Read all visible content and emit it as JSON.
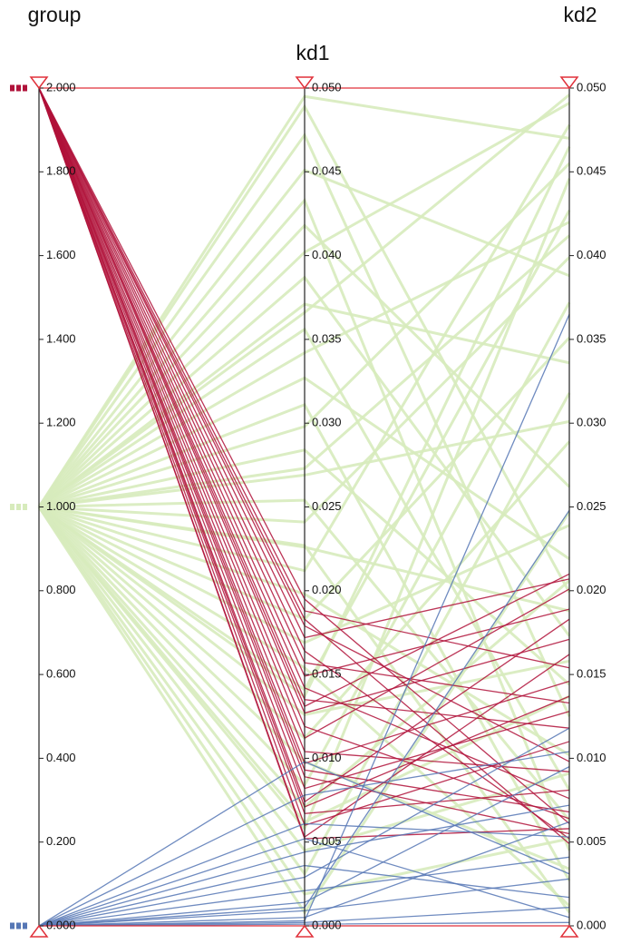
{
  "chart_data": {
    "type": "parallel",
    "axes": [
      {
        "name": "group",
        "lim": [
          0,
          2
        ],
        "ticks": [
          {
            "value": 0,
            "label": "0.000"
          },
          {
            "value": 0.2,
            "label": "0.200"
          },
          {
            "value": 0.4,
            "label": "0.400"
          },
          {
            "value": 0.6,
            "label": "0.600"
          },
          {
            "value": 0.8,
            "label": "0.800"
          },
          {
            "value": 1,
            "label": "1.000"
          },
          {
            "value": 1.2,
            "label": "1.200"
          },
          {
            "value": 1.4,
            "label": "1.400"
          },
          {
            "value": 1.6,
            "label": "1.600"
          },
          {
            "value": 1.8,
            "label": "1.800"
          },
          {
            "value": 2,
            "label": "2.000"
          }
        ]
      },
      {
        "name": "kd1",
        "lim": [
          0,
          0.05
        ],
        "ticks": [
          {
            "value": 0,
            "label": "0.000"
          },
          {
            "value": 0.005,
            "label": "0.005"
          },
          {
            "value": 0.01,
            "label": "0.010"
          },
          {
            "value": 0.015,
            "label": "0.015"
          },
          {
            "value": 0.02,
            "label": "0.020"
          },
          {
            "value": 0.025,
            "label": "0.025"
          },
          {
            "value": 0.03,
            "label": "0.030"
          },
          {
            "value": 0.035,
            "label": "0.035"
          },
          {
            "value": 0.04,
            "label": "0.040"
          },
          {
            "value": 0.045,
            "label": "0.045"
          },
          {
            "value": 0.05,
            "label": "0.050"
          }
        ]
      },
      {
        "name": "kd2",
        "lim": [
          0,
          0.05
        ],
        "ticks": [
          {
            "value": 0,
            "label": "0.000"
          },
          {
            "value": 0.005,
            "label": "0.005"
          },
          {
            "value": 0.01,
            "label": "0.010"
          },
          {
            "value": 0.015,
            "label": "0.015"
          },
          {
            "value": 0.02,
            "label": "0.020"
          },
          {
            "value": 0.025,
            "label": "0.025"
          },
          {
            "value": 0.03,
            "label": "0.030"
          },
          {
            "value": 0.035,
            "label": "0.035"
          },
          {
            "value": 0.04,
            "label": "0.040"
          },
          {
            "value": 0.045,
            "label": "0.045"
          },
          {
            "value": 0.05,
            "label": "0.050"
          }
        ]
      }
    ],
    "series": [
      {
        "color": "#d7ebbc",
        "values": [
          [
            1,
            0.0495,
            0.047
          ],
          [
            1,
            0.0472,
            0.0125
          ],
          [
            1,
            0.0451,
            0.0388
          ],
          [
            1,
            0.0433,
            0.0045
          ],
          [
            1,
            0.0418,
            0.0262
          ],
          [
            1,
            0.0402,
            0.0491
          ],
          [
            1,
            0.0387,
            0.0173
          ],
          [
            1,
            0.0371,
            0.0336
          ],
          [
            1,
            0.0356,
            0.0081
          ],
          [
            1,
            0.0342,
            0.042
          ],
          [
            1,
            0.0327,
            0.0219
          ],
          [
            1,
            0.0311,
            0.0027
          ],
          [
            1,
            0.0298,
            0.0455
          ],
          [
            1,
            0.0284,
            0.0144
          ],
          [
            1,
            0.0269,
            0.0301
          ],
          [
            1,
            0.0254,
            0.0063
          ],
          [
            1,
            0.0241,
            0.0399
          ],
          [
            1,
            0.0226,
            0.0188
          ],
          [
            1,
            0.0212,
            0.0478
          ],
          [
            1,
            0.0198,
            0.0102
          ],
          [
            1,
            0.0183,
            0.0351
          ],
          [
            1,
            0.0169,
            0.0239
          ],
          [
            1,
            0.0154,
            0.0012
          ],
          [
            1,
            0.0141,
            0.0427
          ],
          [
            1,
            0.0126,
            0.0158
          ],
          [
            1,
            0.0112,
            0.0289
          ],
          [
            1,
            0.0098,
            0.0034
          ],
          [
            1,
            0.0084,
            0.0372
          ],
          [
            1,
            0.0071,
            0.0206
          ],
          [
            1,
            0.0058,
            0.0446
          ],
          [
            1,
            0.0045,
            0.0091
          ],
          [
            1,
            0.0031,
            0.0318
          ],
          [
            1,
            0.0019,
            0.0052
          ],
          [
            1,
            0.0008,
            0.0247
          ],
          [
            1,
            0.0489,
            0.0199
          ],
          [
            1,
            0.0366,
            0.0496
          ],
          [
            1,
            0.0273,
            0.0412
          ],
          [
            1,
            0.0137,
            0.0465
          ],
          [
            1,
            0.0062,
            0.0137
          ],
          [
            1,
            0.0227,
            0.0008
          ]
        ]
      },
      {
        "color": "#b0123a",
        "values": [
          [
            2,
            0.0195,
            0.0061
          ],
          [
            2,
            0.0188,
            0.0154
          ],
          [
            2,
            0.0179,
            0.0098
          ],
          [
            2,
            0.0172,
            0.0207
          ],
          [
            2,
            0.0164,
            0.0052
          ],
          [
            2,
            0.0157,
            0.0133
          ],
          [
            2,
            0.0149,
            0.0189
          ],
          [
            2,
            0.0142,
            0.0076
          ],
          [
            2,
            0.0135,
            0.0118
          ],
          [
            2,
            0.0127,
            0.0171
          ],
          [
            2,
            0.0119,
            0.0064
          ],
          [
            2,
            0.0112,
            0.0201
          ],
          [
            2,
            0.0104,
            0.0092
          ],
          [
            2,
            0.0097,
            0.0146
          ],
          [
            2,
            0.0089,
            0.0055
          ],
          [
            2,
            0.0082,
            0.0128
          ],
          [
            2,
            0.0074,
            0.0183
          ],
          [
            2,
            0.0067,
            0.0081
          ],
          [
            2,
            0.006,
            0.011
          ],
          [
            2,
            0.0053,
            0.0162
          ],
          [
            2,
            0.0183,
            0.0049
          ],
          [
            2,
            0.0131,
            0.021
          ],
          [
            2,
            0.0093,
            0.0068
          ],
          [
            2,
            0.0071,
            0.0137
          ],
          [
            2,
            0.0052,
            0.0058
          ]
        ]
      },
      {
        "color": "#5677b5",
        "values": [
          [
            0,
            0.0002,
            0.0011
          ],
          [
            0,
            0.0005,
            0.0062
          ],
          [
            0,
            0.0009,
            0.0028
          ],
          [
            0,
            0.0014,
            0.0095
          ],
          [
            0,
            0.0021,
            0.0041
          ],
          [
            0,
            0.0029,
            0.0118
          ],
          [
            0,
            0.0036,
            0.0017
          ],
          [
            0,
            0.0044,
            0.0072
          ],
          [
            0,
            0.0052,
            0.0005
          ],
          [
            0,
            0.0061,
            0.0053
          ],
          [
            0,
            0.0078,
            0.0104
          ],
          [
            0,
            0.0098,
            0.0031
          ],
          [
            0,
            0.0003,
            0.0365
          ],
          [
            0,
            0.0011,
            0.0248
          ],
          [
            0,
            0.0001,
            0.0002
          ]
        ]
      }
    ]
  }
}
